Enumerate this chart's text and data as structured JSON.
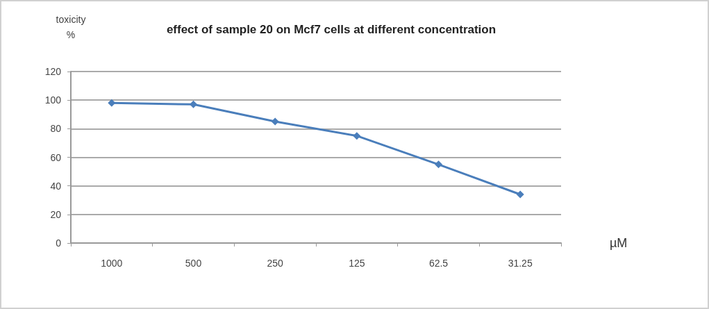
{
  "chart_data": {
    "type": "line",
    "title": "effect of sample 20 on Mcf7 cells at different concentration",
    "ylabel": "toxicity\n%",
    "xlabel": "µM",
    "categories": [
      "1000",
      "500",
      "250",
      "125",
      "62.5",
      "31.25"
    ],
    "series": [
      {
        "color": "#4a7ebb",
        "values": [
          98,
          97,
          85,
          75,
          55,
          34
        ]
      }
    ],
    "ylim": [
      0,
      120
    ],
    "yticks": [
      0,
      20,
      40,
      60,
      80,
      100,
      120
    ],
    "grid": "y",
    "marker": "diamond",
    "line_style": "solid"
  }
}
